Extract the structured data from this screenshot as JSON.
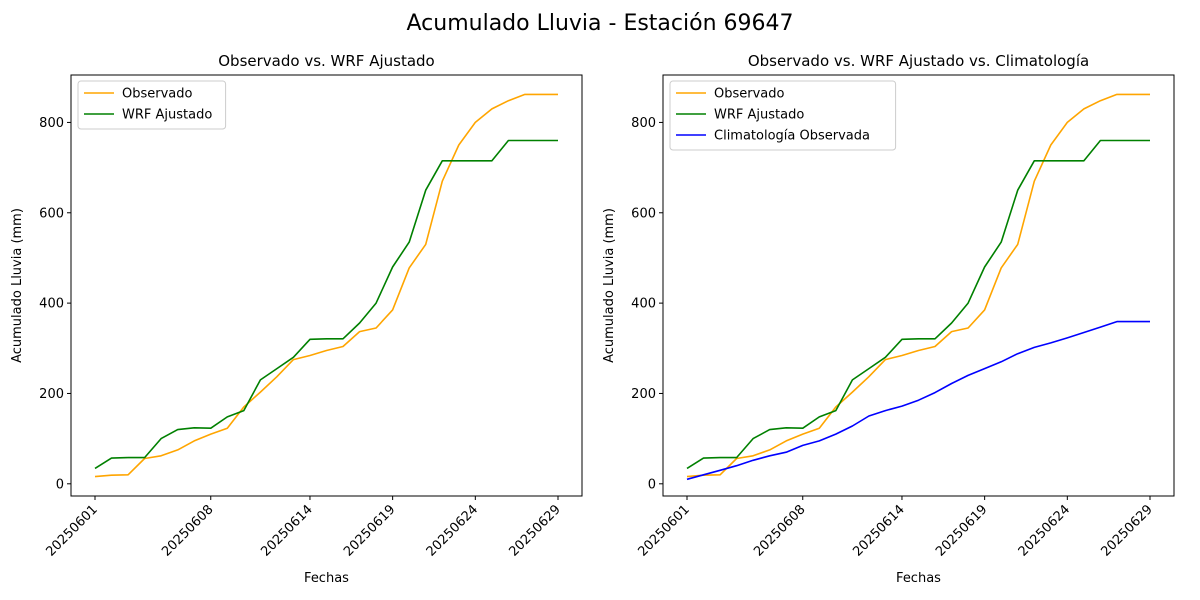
{
  "figure": {
    "title": "Acumulado Lluvia - Estación 69647"
  },
  "colors": {
    "observado": "#FFA500",
    "wrf": "#008000",
    "climatologia": "#0000FF"
  },
  "chart_data": [
    {
      "type": "line",
      "title": "Observado vs. WRF Ajustado",
      "xlabel": "Fechas",
      "ylabel": "Acumulado Lluvia (mm)",
      "ylim": [
        -27,
        905
      ],
      "yticks": [
        0,
        200,
        400,
        600,
        800
      ],
      "xticks": [
        "20250601",
        "20250608",
        "20250614",
        "20250619",
        "20250624",
        "20250629"
      ],
      "legend": "upper-left",
      "x": [
        "20250601",
        "20250602",
        "20250603",
        "20250604",
        "20250605",
        "20250606",
        "20250607",
        "20250608",
        "20250609",
        "20250610",
        "20250611",
        "20250612",
        "20250613",
        "20250614",
        "20250615",
        "20250616",
        "20250617",
        "20250618",
        "20250619",
        "20250620",
        "20250621",
        "20250622",
        "20250623",
        "20250624",
        "20250625",
        "20250626",
        "20250627",
        "20250628",
        "20250629"
      ],
      "series": [
        {
          "name": "Observado",
          "color": "#FFA500",
          "values": [
            16,
            19,
            20,
            56,
            62,
            75,
            95,
            110,
            123,
            170,
            203,
            237,
            275,
            284,
            295,
            304,
            337,
            345,
            385,
            478,
            530,
            670,
            750,
            800,
            830,
            848,
            862,
            862,
            862
          ]
        },
        {
          "name": "WRF Ajustado",
          "color": "#008000",
          "values": [
            34,
            57,
            58,
            58,
            100,
            120,
            124,
            123,
            148,
            162,
            230,
            255,
            280,
            320,
            321,
            321,
            356,
            400,
            480,
            535,
            650,
            715,
            715,
            715,
            715,
            760,
            760,
            760,
            760
          ]
        }
      ]
    },
    {
      "type": "line",
      "title": "Observado vs. WRF Ajustado vs. Climatología",
      "xlabel": "Fechas",
      "ylabel": "Acumulado Lluvia (mm)",
      "ylim": [
        -27,
        905
      ],
      "yticks": [
        0,
        200,
        400,
        600,
        800
      ],
      "xticks": [
        "20250601",
        "20250608",
        "20250614",
        "20250619",
        "20250624",
        "20250629"
      ],
      "legend": "upper-left",
      "x": [
        "20250601",
        "20250602",
        "20250603",
        "20250604",
        "20250605",
        "20250606",
        "20250607",
        "20250608",
        "20250609",
        "20250610",
        "20250611",
        "20250612",
        "20250613",
        "20250614",
        "20250615",
        "20250616",
        "20250617",
        "20250618",
        "20250619",
        "20250620",
        "20250621",
        "20250622",
        "20250623",
        "20250624",
        "20250625",
        "20250626",
        "20250627",
        "20250628",
        "20250629"
      ],
      "series": [
        {
          "name": "Observado",
          "color": "#FFA500",
          "values": [
            16,
            19,
            20,
            56,
            62,
            75,
            95,
            110,
            123,
            170,
            203,
            237,
            275,
            284,
            295,
            304,
            337,
            345,
            385,
            478,
            530,
            670,
            750,
            800,
            830,
            848,
            862,
            862,
            862
          ]
        },
        {
          "name": "WRF Ajustado",
          "color": "#008000",
          "values": [
            34,
            57,
            58,
            58,
            100,
            120,
            124,
            123,
            148,
            162,
            230,
            255,
            280,
            320,
            321,
            321,
            356,
            400,
            480,
            535,
            650,
            715,
            715,
            715,
            715,
            760,
            760,
            760,
            760
          ]
        },
        {
          "name": "Climatología Observada",
          "color": "#0000FF",
          "values": [
            10,
            20,
            30,
            40,
            52,
            62,
            70,
            85,
            95,
            110,
            128,
            150,
            162,
            172,
            185,
            202,
            222,
            240,
            255,
            270,
            288,
            302,
            312,
            323,
            335,
            347,
            359,
            359,
            359
          ]
        }
      ]
    }
  ]
}
